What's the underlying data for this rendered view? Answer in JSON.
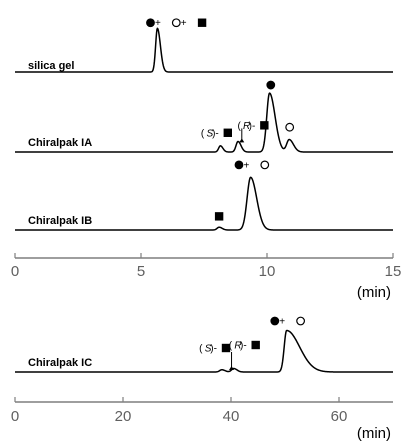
{
  "chart_data": [
    {
      "type": "line",
      "xlabel": "(min)",
      "xlim": [
        0,
        15
      ],
      "xticks": [
        0,
        5,
        10,
        15
      ],
      "traces": [
        {
          "label": "silica gel",
          "peaks": [
            {
              "x": 5.65,
              "height": 0.78,
              "width": 0.07,
              "tail": 0.12
            }
          ],
          "annotations": [
            {
              "x": 6.4,
              "y": 0.88,
              "items": [
                {
                  "t": "mark",
                  "v": "filled-circle"
                },
                {
                  "t": "text",
                  "v": " + "
                },
                {
                  "t": "mark",
                  "v": "open-circle"
                },
                {
                  "t": "text",
                  "v": " + "
                },
                {
                  "t": "mark",
                  "v": "filled-square"
                }
              ]
            }
          ]
        },
        {
          "label": "Chiralpak IA",
          "peaks": [
            {
              "x": 8.15,
              "height": 0.1,
              "width": 0.07,
              "tail": 0.1
            },
            {
              "x": 8.85,
              "height": 0.17,
              "width": 0.08,
              "tail": 0.12
            },
            {
              "x": 10.1,
              "height": 0.95,
              "width": 0.11,
              "tail": 0.22
            },
            {
              "x": 10.88,
              "height": 0.2,
              "width": 0.1,
              "tail": 0.17
            }
          ],
          "annotations": [
            {
              "x": 8.0,
              "y": 0.31,
              "items": [
                {
                  "t": "text",
                  "v": "("
                },
                {
                  "t": "ital",
                  "v": "S"
                },
                {
                  "t": "text",
                  "v": ")-"
                },
                {
                  "t": "mark",
                  "v": "filled-square"
                }
              ]
            },
            {
              "x": 9.45,
              "y": 0.43,
              "items": [
                {
                  "t": "text",
                  "v": "("
                },
                {
                  "t": "ital",
                  "v": "R"
                },
                {
                  "t": "text",
                  "v": ")-"
                },
                {
                  "t": "mark",
                  "v": "filled-square"
                }
              ]
            },
            {
              "x": 10.15,
              "y": 1.08,
              "items": [
                {
                  "t": "mark",
                  "v": "filled-circle"
                }
              ]
            },
            {
              "x": 10.9,
              "y": 0.4,
              "items": [
                {
                  "t": "mark",
                  "v": "open-circle"
                }
              ]
            }
          ],
          "arrows": [
            {
              "x": 9.0,
              "y0": 0.38,
              "y1": 0.22
            }
          ]
        },
        {
          "label": "Chiralpak IB",
          "peaks": [
            {
              "x": 8.1,
              "height": 0.045,
              "width": 0.08,
              "tail": 0.12
            },
            {
              "x": 9.35,
              "height": 0.85,
              "width": 0.14,
              "tail": 0.24
            }
          ],
          "annotations": [
            {
              "x": 8.1,
              "y": 0.22,
              "items": [
                {
                  "t": "mark",
                  "v": "filled-square"
                }
              ]
            },
            {
              "x": 9.4,
              "y": 1.05,
              "items": [
                {
                  "t": "mark",
                  "v": "filled-circle"
                },
                {
                  "t": "text",
                  "v": " + "
                },
                {
                  "t": "mark",
                  "v": "open-circle"
                }
              ]
            }
          ]
        }
      ]
    },
    {
      "type": "line",
      "xlabel": "(min)",
      "xlim": [
        0,
        70
      ],
      "xticks": [
        0,
        20,
        40,
        60
      ],
      "traces": [
        {
          "label": "Chiralpak IC",
          "peaks": [
            {
              "x": 38.3,
              "height": 0.045,
              "width": 0.4,
              "tail": 0.6
            },
            {
              "x": 40.5,
              "height": 0.07,
              "width": 0.4,
              "tail": 0.6
            },
            {
              "x": 50.3,
              "height": 0.83,
              "width": 0.45,
              "tail": 2.4
            }
          ],
          "annotations": [
            {
              "x": 37.0,
              "y": 0.48,
              "items": [
                {
                  "t": "text",
                  "v": "("
                },
                {
                  "t": "ital",
                  "v": "S"
                },
                {
                  "t": "text",
                  "v": ")-"
                },
                {
                  "t": "mark",
                  "v": "filled-square"
                }
              ]
            },
            {
              "x": 42.5,
              "y": 0.54,
              "items": [
                {
                  "t": "text",
                  "v": "("
                },
                {
                  "t": "ital",
                  "v": "R"
                },
                {
                  "t": "text",
                  "v": ")-"
                },
                {
                  "t": "mark",
                  "v": "filled-square"
                }
              ]
            },
            {
              "x": 50.5,
              "y": 1.02,
              "items": [
                {
                  "t": "mark",
                  "v": "filled-circle"
                },
                {
                  "t": "text",
                  "v": " + "
                },
                {
                  "t": "mark",
                  "v": "open-circle"
                }
              ]
            }
          ],
          "arrows": [
            {
              "x": 40.1,
              "y0": 0.4,
              "y1": 0.12
            }
          ]
        }
      ]
    }
  ]
}
